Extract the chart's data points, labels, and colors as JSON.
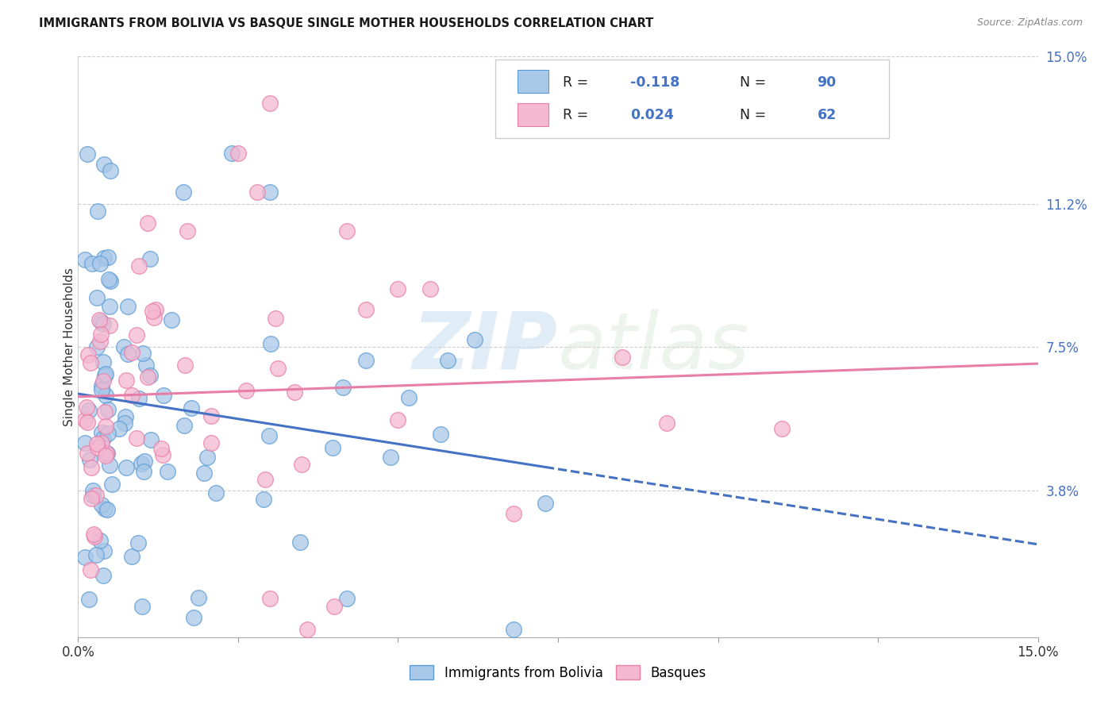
{
  "title": "IMMIGRANTS FROM BOLIVIA VS BASQUE SINGLE MOTHER HOUSEHOLDS CORRELATION CHART",
  "source": "Source: ZipAtlas.com",
  "ylabel": "Single Mother Households",
  "x_min": 0.0,
  "x_max": 0.15,
  "y_min": 0.0,
  "y_max": 0.15,
  "x_tick_positions": [
    0.0,
    0.025,
    0.05,
    0.075,
    0.1,
    0.125,
    0.15
  ],
  "x_tick_labels": [
    "0.0%",
    "",
    "",
    "",
    "",
    "",
    "15.0%"
  ],
  "y_tick_vals_right": [
    0.038,
    0.075,
    0.112,
    0.15
  ],
  "y_tick_labels_right": [
    "3.8%",
    "7.5%",
    "11.2%",
    "15.0%"
  ],
  "watermark_zip": "ZIP",
  "watermark_atlas": "atlas",
  "color_blue_fill": "#A8C8E8",
  "color_blue_edge": "#5B9BD5",
  "color_pink_fill": "#F4B8D0",
  "color_pink_edge": "#E87DA8",
  "color_line_blue": "#4472C4",
  "color_line_pink": "#E87DA8",
  "color_grid": "#CCCCCC",
  "background_color": "#FFFFFF",
  "legend_R1": "-0.118",
  "legend_N1": "90",
  "legend_R2": "0.024",
  "legend_N2": "62",
  "seed": 12345
}
